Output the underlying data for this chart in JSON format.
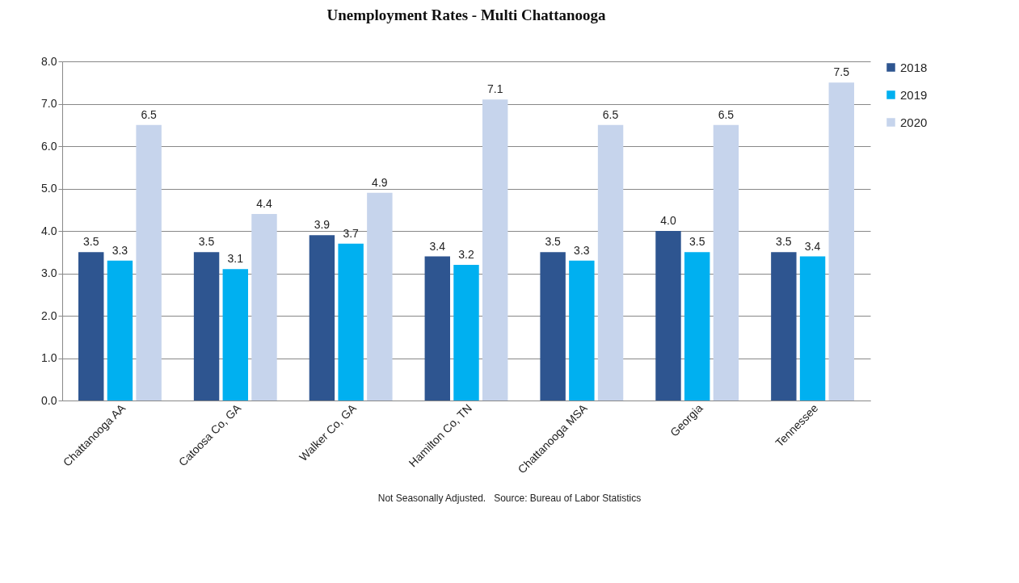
{
  "chart_data": {
    "type": "bar",
    "title": "Unemployment Rates - Multi Chattanooga",
    "categories": [
      "Chattanooga AA",
      "Catoosa Co, GA",
      "Walker Co, GA",
      "Hamilton Co, TN",
      "Chattanooga MSA",
      "Georgia",
      "Tennessee"
    ],
    "series": [
      {
        "name": "2018",
        "color": "#2e5590",
        "values": [
          3.5,
          3.5,
          3.9,
          3.4,
          3.5,
          4.0,
          3.5
        ],
        "value_labels": [
          "3.5",
          "3.5",
          "3.9",
          "3.4",
          "3.5",
          "4.0",
          "3.5"
        ]
      },
      {
        "name": "2019",
        "color": "#00b0f0",
        "values": [
          3.3,
          3.1,
          3.7,
          3.2,
          3.3,
          3.5,
          3.4
        ],
        "value_labels": [
          "3.3",
          "3.1",
          "3.7",
          "3.2",
          "3.3",
          "3.5",
          "3.4"
        ]
      },
      {
        "name": "2020",
        "color": "#c6d4ec",
        "values": [
          6.5,
          4.4,
          4.9,
          7.1,
          6.5,
          6.5,
          7.5
        ],
        "value_labels": [
          "6.5",
          "4.4",
          "4.9",
          "7.1",
          "6.5",
          "6.5",
          "7.5"
        ]
      }
    ],
    "ylim": [
      0,
      8
    ],
    "yticks": [
      {
        "value": 0,
        "label": "0.0"
      },
      {
        "value": 1,
        "label": "1.0"
      },
      {
        "value": 2,
        "label": "2.0"
      },
      {
        "value": 3,
        "label": "3.0"
      },
      {
        "value": 4,
        "label": "4.0"
      },
      {
        "value": 5,
        "label": "5.0"
      },
      {
        "value": 6,
        "label": "6.0"
      },
      {
        "value": 7,
        "label": "7.0"
      },
      {
        "value": 8,
        "label": "8.0"
      }
    ],
    "grid": "y",
    "legend": "right",
    "annotations": [
      "Not Seasonally Adjusted.   Source: Bureau of Labor Statistics"
    ]
  }
}
